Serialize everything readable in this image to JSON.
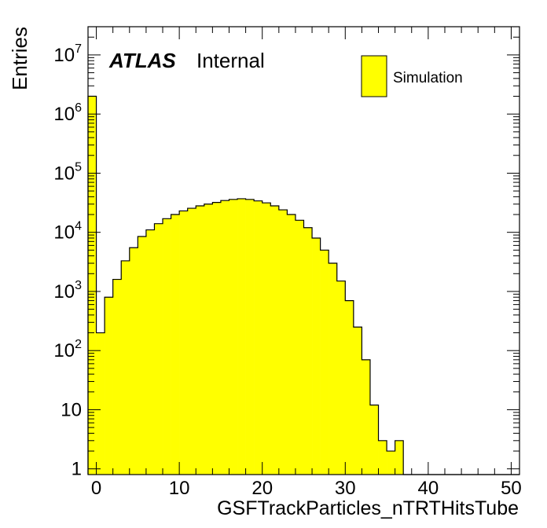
{
  "chart_data": {
    "type": "bar",
    "title": "",
    "xlabel": "GSFTrackParticles_nTRTHitsTube",
    "ylabel": "Entries",
    "xlim": [
      -1,
      51
    ],
    "ylim": [
      0.8,
      30000000
    ],
    "yscale": "log",
    "bin_width": 1,
    "x_ticks": [
      0,
      10,
      20,
      30,
      40,
      50
    ],
    "y_ticks": [
      {
        "value": 1,
        "base": "1",
        "exp": ""
      },
      {
        "value": 10,
        "base": "10",
        "exp": ""
      },
      {
        "value": 100,
        "base": "10",
        "exp": "2"
      },
      {
        "value": 1000,
        "base": "10",
        "exp": "3"
      },
      {
        "value": 10000,
        "base": "10",
        "exp": "4"
      },
      {
        "value": 100000,
        "base": "10",
        "exp": "5"
      },
      {
        "value": 1000000,
        "base": "10",
        "exp": "6"
      },
      {
        "value": 10000000,
        "base": "10",
        "exp": "7"
      }
    ],
    "series": [
      {
        "name": "Simulation",
        "color": "#ffff00",
        "edges": [
          -1,
          0,
          1,
          2,
          3,
          4,
          5,
          6,
          7,
          8,
          9,
          10,
          11,
          12,
          13,
          14,
          15,
          16,
          17,
          18,
          19,
          20,
          21,
          22,
          23,
          24,
          25,
          26,
          27,
          28,
          29,
          30,
          31,
          32,
          33,
          34,
          35,
          36,
          37,
          38,
          39,
          40,
          41,
          42,
          43,
          44,
          45,
          46,
          47,
          48,
          49,
          50,
          51
        ],
        "values": [
          2000000,
          200,
          800,
          1600,
          3300,
          5500,
          8500,
          11000,
          14000,
          17000,
          20000,
          23000,
          25500,
          28000,
          30000,
          32000,
          34500,
          36000,
          37000,
          36000,
          34000,
          31500,
          28000,
          24000,
          20000,
          16000,
          12000,
          8000,
          5000,
          3000,
          1500,
          700,
          250,
          70,
          12,
          3,
          2,
          3,
          0.7,
          0,
          0.7,
          0,
          0,
          0,
          0,
          0,
          0,
          0,
          0,
          0,
          0,
          0
        ]
      }
    ],
    "legend": {
      "entries": [
        "Simulation"
      ],
      "placement": "top-right"
    },
    "grid": false
  },
  "annotation": {
    "atlas": "ATLAS",
    "status": "Internal"
  }
}
